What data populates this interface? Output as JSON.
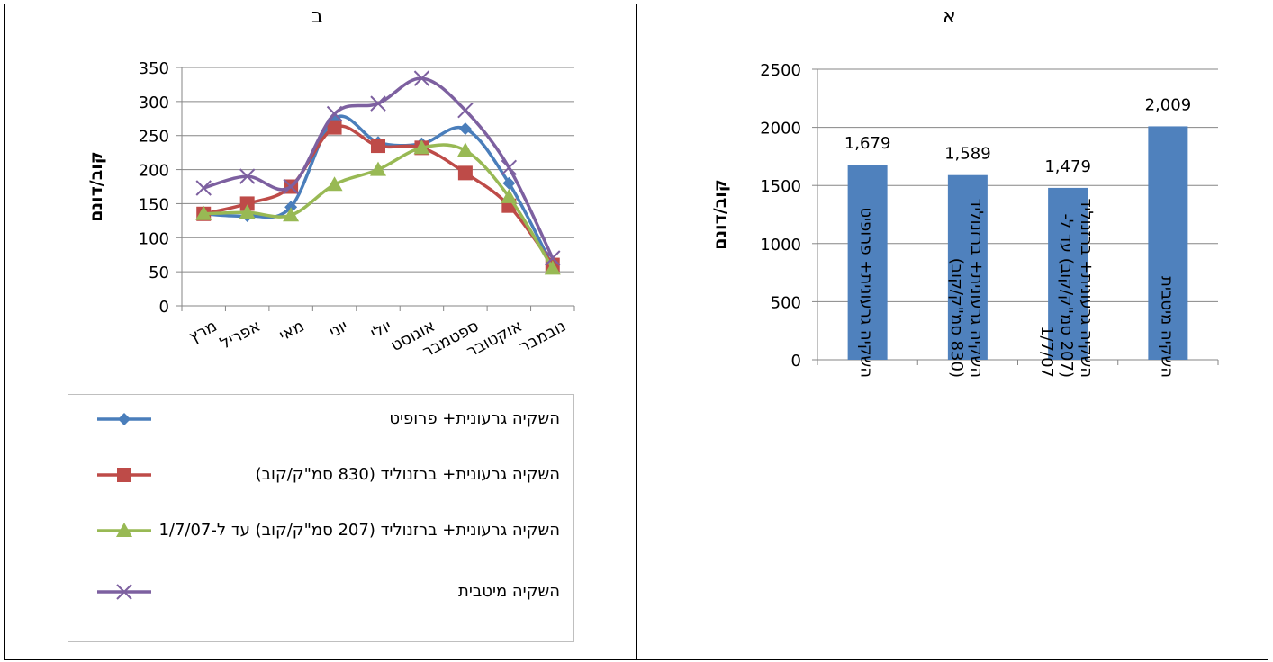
{
  "panels": {
    "left_title": "ב",
    "right_title": "א"
  },
  "chart_data": [
    {
      "type": "line",
      "title": "ב",
      "ylabel": "קוב/דונם",
      "ylim": [
        0,
        350
      ],
      "yticks": [
        0,
        50,
        100,
        150,
        200,
        250,
        300,
        350
      ],
      "categories": [
        "מרץ",
        "אפריל",
        "מאי",
        "יוני",
        "יולי",
        "אוגוסט",
        "ספטמבר",
        "אוקטובר",
        "נובמבר"
      ],
      "series": [
        {
          "name": "השקיה גרעונית+ פרופיט",
          "color": "#4a7ebb",
          "marker": "diamond",
          "values": [
            135,
            132,
            145,
            275,
            240,
            238,
            260,
            180,
            58
          ]
        },
        {
          "name": "השקיה גרעונית+ ברזנוליד (830 סמ\"ק/קוב)",
          "color": "#be4b48",
          "marker": "square",
          "values": [
            135,
            150,
            175,
            262,
            235,
            232,
            195,
            147,
            60
          ]
        },
        {
          "name": "השקיה גרעונית+ ברזנוליד (207 סמ\"ק/קוב) עד ל-1/7/07",
          "color": "#98b954",
          "marker": "triangle",
          "values": [
            135,
            137,
            133,
            178,
            200,
            232,
            228,
            160,
            55
          ]
        },
        {
          "name": "השקיה מיטבית",
          "color": "#7d60a0",
          "marker": "x",
          "values": [
            173,
            190,
            175,
            282,
            297,
            334,
            287,
            203,
            70
          ]
        }
      ],
      "legend": "bottom"
    },
    {
      "type": "bar",
      "title": "א",
      "ylabel": "קוב/דונם",
      "ylim": [
        0,
        2500
      ],
      "yticks": [
        0,
        500,
        1000,
        1500,
        2000,
        2500
      ],
      "bar_color": "#4f81bd",
      "categories": [
        [
          "השקיה גרעונית+ פרופיט"
        ],
        [
          "השקיה גרעונית+ ברזנוליד",
          "(830 סמ\"ק/קוב)"
        ],
        [
          "השקיה גרעונית+ ברזנוליד",
          "(207 סמ\"ק/קוב) עד ל-",
          "1/7/07"
        ],
        [
          "השקיה מיטבית"
        ]
      ],
      "values": [
        1679,
        1589,
        1479,
        2009
      ],
      "data_labels": [
        "1,679",
        "1,589",
        "1,479",
        "2,009"
      ]
    }
  ]
}
